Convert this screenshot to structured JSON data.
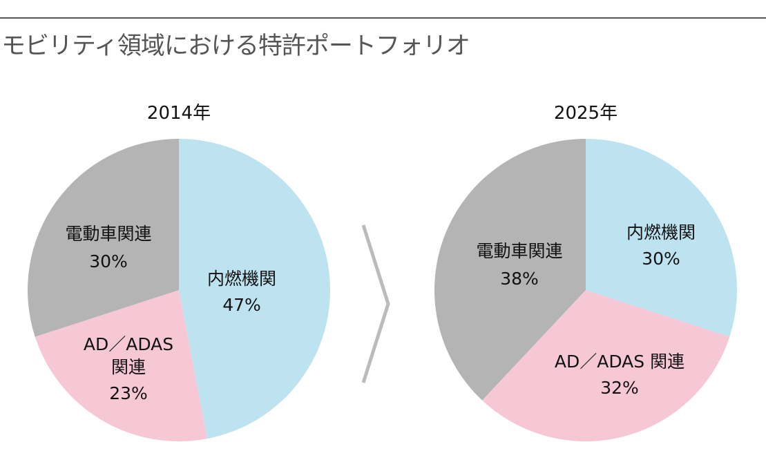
{
  "title": "モビリティ領域における特許ポートフォリオ",
  "chart_data": [
    {
      "type": "pie",
      "title": "2014年",
      "slices": [
        {
          "label": "内燃機関",
          "value": 47,
          "value_label": "47%",
          "color": "#bde3f0"
        },
        {
          "label": "AD／ADAS関連",
          "value": 23,
          "value_label": "23%",
          "color": "#f6c8d5"
        },
        {
          "label": "電動車関連",
          "value": 30,
          "value_label": "30%",
          "color": "#b4b4b4"
        }
      ]
    },
    {
      "type": "pie",
      "title": "2025年",
      "slices": [
        {
          "label": "内燃機関",
          "value": 30,
          "value_label": "30%",
          "color": "#bde3f0"
        },
        {
          "label": "AD／ADAS 関連",
          "value": 32,
          "value_label": "32%",
          "color": "#f6c8d5"
        },
        {
          "label": "電動車関連",
          "value": 38,
          "value_label": "38%",
          "color": "#b4b4b4"
        }
      ]
    }
  ]
}
